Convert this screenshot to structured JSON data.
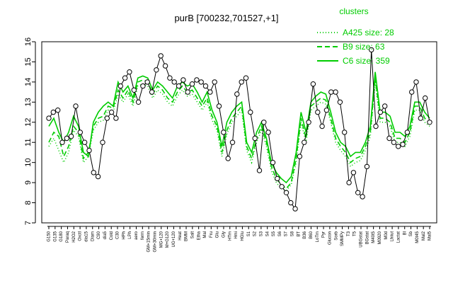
{
  "chart_data": {
    "type": "line",
    "title": "purB [700232,701527,+1]",
    "xlabel": "",
    "ylabel": "",
    "ylim": [
      7,
      16
    ],
    "yticks": [
      7,
      8,
      9,
      10,
      11,
      12,
      13,
      14,
      15,
      16
    ],
    "grid": false,
    "legend": {
      "title": "clusters",
      "placement": "top-right",
      "color": "#00cc00",
      "entries": [
        {
          "label": "A425 size: 28",
          "style": "dotted"
        },
        {
          "label": "B9 size: 63",
          "style": "dashed"
        },
        {
          "label": "C6 size: 359",
          "style": "solid"
        }
      ]
    },
    "x_tick_labels": [
      "G150",
      "G135",
      "G180",
      "Paraq",
      "H2O2",
      "Oxctl",
      "dia15",
      "Diam",
      "C90",
      "dia5",
      "Cold",
      "C30",
      "HPh",
      "LPh",
      "aero",
      "ferm",
      "GM+15min",
      "GM+30min",
      "MG+120",
      "M+G120",
      "UG+120",
      "Heat",
      "BMM",
      "Salt",
      "Etha",
      "Mal",
      "Fru",
      "Glu",
      "Gly",
      "HTm",
      "Hmi",
      "HGlu",
      "S1",
      "S2",
      "S3",
      "S4",
      "S5",
      "S6",
      "S7",
      "S8",
      "BT",
      "B36",
      "B60",
      "LoTm",
      "Pyr",
      "Glucon",
      "Sorb",
      "SMMPy",
      "T3",
      "T5",
      "UBGstat",
      "BGstat",
      "M40t5",
      "M0920",
      "M0d",
      "Lhiiut",
      "Lactat",
      "Bl",
      "Sb",
      "M0t45",
      "Mal2",
      "Mal5"
    ],
    "series_points": [
      12.2,
      12.5,
      12.6,
      11.0,
      11.2,
      11.3,
      12.8,
      11.5,
      11.0,
      10.6,
      9.5,
      9.3,
      11.0,
      12.2,
      12.5,
      12.2,
      13.8,
      14.2,
      14.5,
      13.6,
      13.0,
      13.8,
      14.0,
      13.5,
      14.6,
      15.3,
      14.8,
      14.2,
      14.0,
      13.8,
      14.1,
      13.5,
      13.9,
      14.1,
      14.0,
      13.8,
      13.5,
      14.0,
      12.8,
      11.5,
      10.2,
      11.0,
      13.4,
      14.0,
      14.2,
      12.5,
      11.2,
      9.6,
      12.0,
      11.5,
      10.0,
      9.2,
      8.8,
      8.5,
      8.0,
      7.7,
      10.3,
      11.0,
      12.0,
      13.9,
      12.5,
      11.8,
      12.6,
      13.5,
      13.5,
      13.0,
      11.5,
      9.0,
      9.5,
      8.5,
      8.3,
      9.8,
      15.6,
      11.8,
      12.5,
      12.8,
      11.2,
      11.0,
      10.8,
      10.9,
      11.5,
      13.5,
      14.0,
      12.2,
      13.2,
      12.0
    ],
    "cluster_lines": {
      "C6": [
        11.8,
        12.2,
        11.5,
        11.0,
        11.5,
        12.3,
        11.8,
        10.5,
        10.3,
        12.0,
        12.5,
        12.8,
        13.0,
        12.8,
        14.0,
        13.5,
        13.8,
        13.2,
        14.2,
        14.3,
        14.2,
        13.6,
        14.0,
        13.8,
        13.5,
        13.2,
        13.8,
        14.0,
        13.8,
        13.9,
        13.5,
        13.0,
        13.5,
        12.6,
        12.0,
        10.8,
        12.0,
        12.5,
        12.8,
        13.0,
        11.0,
        10.5,
        11.5,
        12.0,
        11.2,
        10.0,
        9.5,
        9.2,
        9.0,
        9.3,
        10.5,
        12.5,
        11.5,
        13.0,
        13.3,
        13.5,
        13.4,
        12.5,
        11.5,
        11.0,
        10.8,
        10.3,
        10.5,
        10.5,
        11.0,
        11.8,
        14.5,
        12.5,
        12.5,
        12.3,
        11.5,
        11.5,
        11.3,
        11.8,
        13.0,
        13.0,
        12.5,
        12.2
      ],
      "B9": [
        11.0,
        11.5,
        11.3,
        10.3,
        10.8,
        11.8,
        11.5,
        10.2,
        10.5,
        11.8,
        12.2,
        12.3,
        12.8,
        12.7,
        13.6,
        13.2,
        13.6,
        13.0,
        14.0,
        14.1,
        14.0,
        13.4,
        13.8,
        13.6,
        13.2,
        13.0,
        13.5,
        13.8,
        13.5,
        13.6,
        13.2,
        12.8,
        13.2,
        12.3,
        11.8,
        10.5,
        11.6,
        12.2,
        12.5,
        12.8,
        10.8,
        10.2,
        11.2,
        11.8,
        11.0,
        9.8,
        9.2,
        8.9,
        8.7,
        9.0,
        10.2,
        12.2,
        11.2,
        12.8,
        13.0,
        13.2,
        13.1,
        12.2,
        11.2,
        10.8,
        10.5,
        10.0,
        10.2,
        10.3,
        10.8,
        11.5,
        14.2,
        12.2,
        12.2,
        12.0,
        11.2,
        11.2,
        11.0,
        11.5,
        12.8,
        12.8,
        12.2,
        12.0
      ],
      "A425": [
        10.8,
        11.2,
        10.6,
        10.0,
        10.5,
        11.6,
        11.3,
        10.0,
        10.3,
        11.6,
        12.0,
        12.1,
        12.6,
        12.5,
        13.4,
        13.0,
        13.4,
        12.8,
        13.8,
        13.9,
        13.8,
        13.2,
        13.6,
        13.4,
        13.0,
        12.8,
        13.3,
        13.6,
        13.3,
        13.4,
        13.0,
        12.6,
        13.0,
        12.1,
        11.6,
        10.3,
        11.4,
        12.0,
        12.3,
        12.6,
        10.6,
        10.0,
        11.0,
        11.6,
        10.8,
        9.6,
        9.0,
        8.7,
        8.6,
        8.9,
        10.0,
        12.0,
        11.0,
        12.6,
        12.8,
        13.0,
        12.9,
        12.0,
        11.0,
        10.6,
        10.3,
        9.8,
        10.0,
        10.1,
        10.6,
        11.3,
        14.0,
        12.0,
        12.0,
        11.8,
        11.0,
        11.0,
        10.8,
        11.3,
        12.6,
        12.6,
        12.0,
        11.8
      ]
    }
  }
}
